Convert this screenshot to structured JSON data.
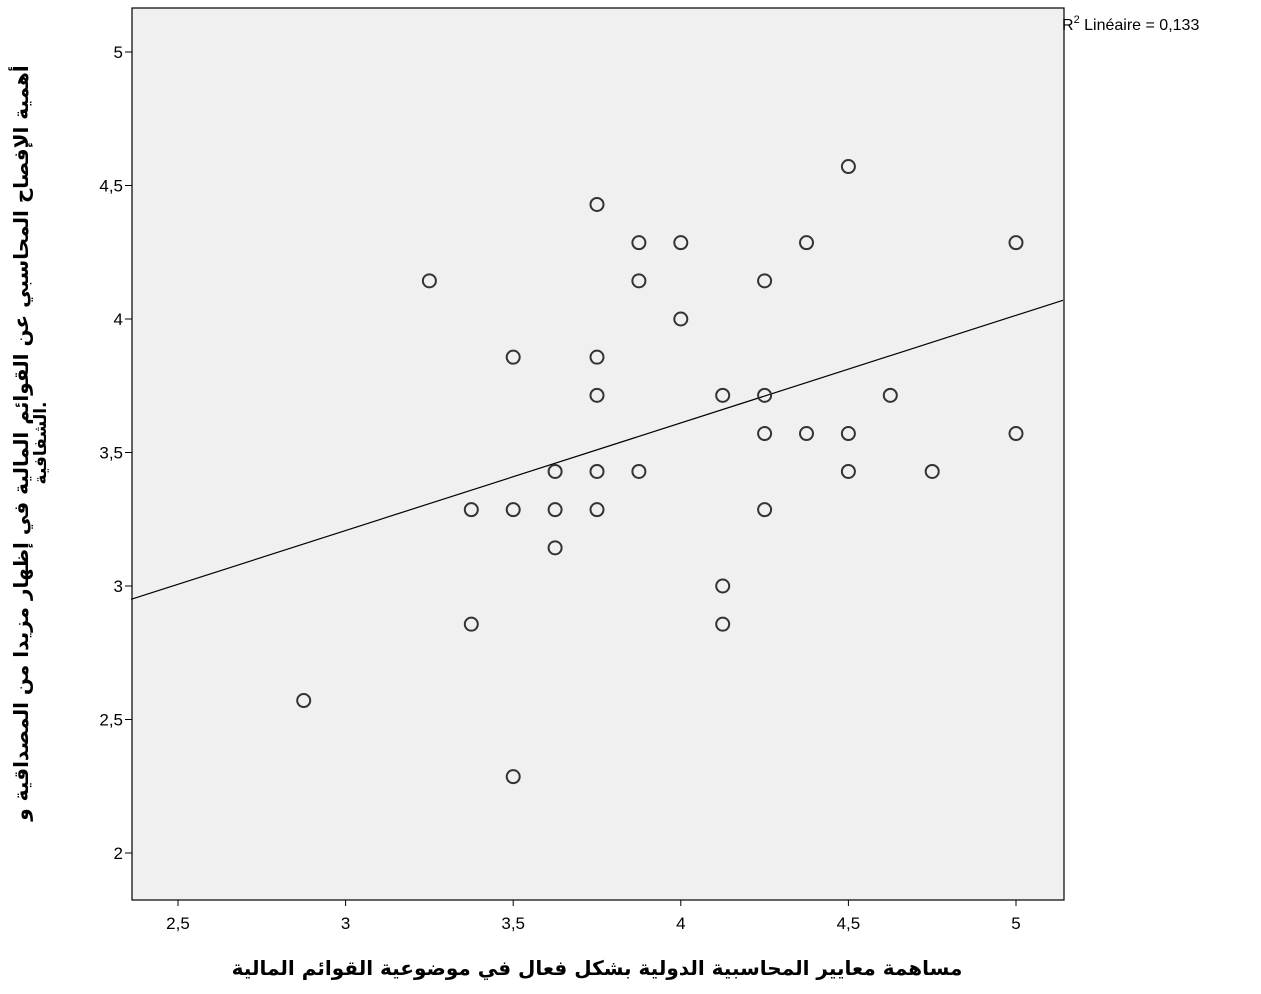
{
  "chart_data": {
    "type": "scatter",
    "xlabel": "مساهمة معايير المحاسبية الدولية بشكل فعال في موضوعية القوائم المالية",
    "ylabel_lines": [
      "أهمية الإفصاح المحاسبي عن  القوائم المالية في إظهار مزيدا من المصداقية و",
      "الشفافية."
    ],
    "r2_label": {
      "prefix": "R",
      "sup": "2",
      "text": " Linéaire = 0,133"
    },
    "xlim": [
      2.36,
      5.14
    ],
    "ylim": [
      1.8,
      5.15
    ],
    "xticks": [
      2.5,
      3,
      3.5,
      4,
      4.5,
      5
    ],
    "yticks": [
      2,
      2.5,
      3,
      3.5,
      4,
      4.5,
      5
    ],
    "xtick_labels": [
      "2,5",
      "3",
      "3,5",
      "4",
      "4,5",
      "5"
    ],
    "ytick_labels": [
      "2",
      "2,5",
      "3",
      "3,5",
      "4",
      "4,5",
      "5"
    ],
    "fit_line": {
      "x": [
        2.36,
        5.14
      ],
      "y": [
        2.95,
        4.07
      ]
    },
    "points": [
      {
        "x": 2.875,
        "y": 2.571
      },
      {
        "x": 3.25,
        "y": 4.143
      },
      {
        "x": 3.375,
        "y": 3.286
      },
      {
        "x": 3.375,
        "y": 2.857
      },
      {
        "x": 3.5,
        "y": 3.857
      },
      {
        "x": 3.5,
        "y": 3.286
      },
      {
        "x": 3.5,
        "y": 2.286
      },
      {
        "x": 3.625,
        "y": 3.429
      },
      {
        "x": 3.625,
        "y": 3.286
      },
      {
        "x": 3.625,
        "y": 3.143
      },
      {
        "x": 3.75,
        "y": 4.429
      },
      {
        "x": 3.75,
        "y": 3.857
      },
      {
        "x": 3.75,
        "y": 3.714
      },
      {
        "x": 3.75,
        "y": 3.429
      },
      {
        "x": 3.75,
        "y": 3.286
      },
      {
        "x": 3.875,
        "y": 4.286
      },
      {
        "x": 3.875,
        "y": 4.143
      },
      {
        "x": 3.875,
        "y": 3.429
      },
      {
        "x": 4.0,
        "y": 4.286
      },
      {
        "x": 4.0,
        "y": 4.0
      },
      {
        "x": 4.125,
        "y": 3.714
      },
      {
        "x": 4.125,
        "y": 3.0
      },
      {
        "x": 4.125,
        "y": 2.857
      },
      {
        "x": 4.25,
        "y": 4.143
      },
      {
        "x": 4.25,
        "y": 3.714
      },
      {
        "x": 4.25,
        "y": 3.571
      },
      {
        "x": 4.25,
        "y": 3.286
      },
      {
        "x": 4.375,
        "y": 4.286
      },
      {
        "x": 4.375,
        "y": 3.571
      },
      {
        "x": 4.5,
        "y": 4.571
      },
      {
        "x": 4.5,
        "y": 3.571
      },
      {
        "x": 4.5,
        "y": 3.429
      },
      {
        "x": 4.625,
        "y": 3.714
      },
      {
        "x": 4.75,
        "y": 3.429
      },
      {
        "x": 5.0,
        "y": 4.286
      },
      {
        "x": 5.0,
        "y": 3.571
      }
    ],
    "colors": {
      "plot_background": "#f0f0f0",
      "marker": "#333333",
      "line": "#000000"
    },
    "grid": false,
    "legend": "none"
  }
}
